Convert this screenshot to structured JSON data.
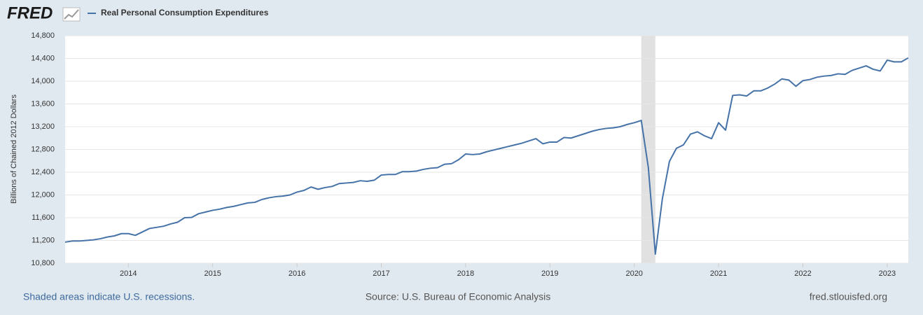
{
  "logo": "FRED",
  "chart_data": {
    "type": "line",
    "y_label": "Billions of Chained 2012 Dollars",
    "x": [
      2013.25,
      2013.333,
      2013.417,
      2013.5,
      2013.583,
      2013.667,
      2013.75,
      2013.833,
      2013.917,
      2014,
      2014.083,
      2014.167,
      2014.25,
      2014.333,
      2014.417,
      2014.5,
      2014.583,
      2014.667,
      2014.75,
      2014.833,
      2014.917,
      2015,
      2015.083,
      2015.167,
      2015.25,
      2015.333,
      2015.417,
      2015.5,
      2015.583,
      2015.667,
      2015.75,
      2015.833,
      2015.917,
      2016,
      2016.083,
      2016.167,
      2016.25,
      2016.333,
      2016.417,
      2016.5,
      2016.583,
      2016.667,
      2016.75,
      2016.833,
      2016.917,
      2017,
      2017.083,
      2017.167,
      2017.25,
      2017.333,
      2017.417,
      2017.5,
      2017.583,
      2017.667,
      2017.75,
      2017.833,
      2017.917,
      2018,
      2018.083,
      2018.167,
      2018.25,
      2018.333,
      2018.417,
      2018.5,
      2018.583,
      2018.667,
      2018.75,
      2018.833,
      2018.917,
      2019,
      2019.083,
      2019.167,
      2019.25,
      2019.333,
      2019.417,
      2019.5,
      2019.583,
      2019.667,
      2019.75,
      2019.833,
      2019.917,
      2020,
      2020.083,
      2020.167,
      2020.25,
      2020.333,
      2020.417,
      2020.5,
      2020.583,
      2020.667,
      2020.75,
      2020.833,
      2020.917,
      2021,
      2021.083,
      2021.167,
      2021.25,
      2021.333,
      2021.417,
      2021.5,
      2021.583,
      2021.667,
      2021.75,
      2021.833,
      2021.917,
      2022,
      2022.083,
      2022.167,
      2022.25,
      2022.333,
      2022.417,
      2022.5,
      2022.583,
      2022.667,
      2022.75,
      2022.833,
      2022.917,
      2023,
      2023.083,
      2023.167,
      2023.25
    ],
    "series": [
      {
        "name": "Real Personal Consumption Expenditures",
        "color": "#4572a7",
        "values": [
          11170,
          11190,
          11190,
          11200,
          11210,
          11230,
          11260,
          11280,
          11320,
          11320,
          11290,
          11350,
          11410,
          11430,
          11450,
          11490,
          11520,
          11600,
          11605,
          11670,
          11700,
          11730,
          11750,
          11780,
          11800,
          11830,
          11860,
          11870,
          11920,
          11950,
          11970,
          11980,
          12000,
          12050,
          12080,
          12140,
          12100,
          12130,
          12150,
          12200,
          12210,
          12220,
          12250,
          12240,
          12260,
          12350,
          12360,
          12360,
          12410,
          12410,
          12420,
          12450,
          12470,
          12480,
          12540,
          12550,
          12620,
          12720,
          12710,
          12720,
          12760,
          12790,
          12820,
          12850,
          12880,
          12910,
          12950,
          12990,
          12900,
          12930,
          12930,
          13010,
          13000,
          13040,
          13080,
          13120,
          13150,
          13170,
          13180,
          13200,
          13240,
          13270,
          13310,
          12480,
          10960,
          11930,
          12590,
          12820,
          12880,
          13070,
          13110,
          13040,
          12990,
          13270,
          13140,
          13750,
          13760,
          13740,
          13830,
          13830,
          13880,
          13950,
          14040,
          14020,
          13910,
          14010,
          14030,
          14070,
          14090,
          14100,
          14130,
          14120,
          14190,
          14230,
          14270,
          14210,
          14180,
          14370,
          14340,
          14340,
          14410
        ]
      }
    ],
    "recessions": [
      {
        "start": 2020.083,
        "end": 2020.25
      }
    ],
    "recession_color": "#e1e1e1",
    "xlim": [
      2013.25,
      2023.25
    ],
    "xticks": [
      2014,
      2015,
      2016,
      2017,
      2018,
      2019,
      2020,
      2021,
      2022,
      2023
    ],
    "ylim": [
      10800,
      14800
    ],
    "yticks": [
      {
        "value": 10800,
        "label": "10,800"
      },
      {
        "value": 11200,
        "label": "11,200"
      },
      {
        "value": 11600,
        "label": "11,600"
      },
      {
        "value": 12000,
        "label": "12,000"
      },
      {
        "value": 12400,
        "label": "12,400"
      },
      {
        "value": 12800,
        "label": "12,800"
      },
      {
        "value": 13200,
        "label": "13,200"
      },
      {
        "value": 13600,
        "label": "13,600"
      },
      {
        "value": 14000,
        "label": "14,000"
      },
      {
        "value": 14400,
        "label": "14,400"
      },
      {
        "value": 14800,
        "label": "14,800"
      }
    ],
    "grid": true
  },
  "footer": {
    "note": "Shaded areas indicate U.S. recessions.",
    "source": "Source: U.S. Bureau of Economic Analysis",
    "site": "fred.stlouisfed.org"
  }
}
